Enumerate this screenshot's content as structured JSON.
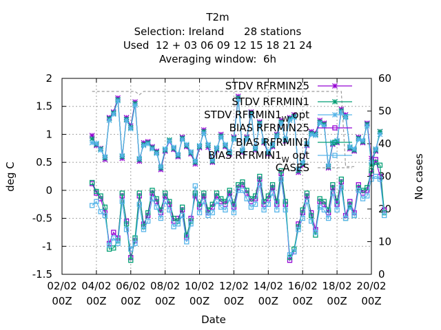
{
  "header": {
    "line1": "T2m",
    "line2": "Selection: Ireland      28 stations",
    "line3": "Used  12 + 03 06 09 12 15 18 21 24",
    "line4": "Averaging window:  6h"
  },
  "chart_data": {
    "type": "line",
    "xlabel": "Date",
    "ylabel": "deg C",
    "y2label": "No cases",
    "x_ticks": [
      {
        "date": "2023-02-02T00:00",
        "line1": "02/02",
        "line2": "00Z"
      },
      {
        "date": "2023-02-04T00:00",
        "line1": "04/02",
        "line2": "00Z"
      },
      {
        "date": "2023-02-06T00:00",
        "line1": "06/02",
        "line2": "00Z"
      },
      {
        "date": "2023-02-08T00:00",
        "line1": "08/02",
        "line2": "00Z"
      },
      {
        "date": "2023-02-10T00:00",
        "line1": "10/02",
        "line2": "00Z"
      },
      {
        "date": "2023-02-12T00:00",
        "line1": "12/02",
        "line2": "00Z"
      },
      {
        "date": "2023-02-14T00:00",
        "line1": "14/02",
        "line2": "00Z"
      },
      {
        "date": "2023-02-16T00:00",
        "line1": "16/02",
        "line2": "00Z"
      },
      {
        "date": "2023-02-18T00:00",
        "line1": "18/02",
        "line2": "00Z"
      },
      {
        "date": "2023-02-20T00:00",
        "line1": "20/02",
        "line2": "00Z"
      }
    ],
    "xlim": [
      "2023-02-02T00:00",
      "2023-02-20T00:00"
    ],
    "ylim": [
      -1.5,
      2.0
    ],
    "y_ticks": [
      -1.5,
      -1,
      -0.5,
      0,
      0.5,
      1,
      1.5,
      2
    ],
    "y_tick_labels": [
      "-1.5",
      "-1",
      "-0.5",
      "0",
      "0.5",
      "1",
      "1.5",
      "2"
    ],
    "y2lim": [
      0,
      60
    ],
    "y2_ticks": [
      0,
      10,
      20,
      30,
      40,
      50,
      60
    ],
    "y2_tick_labels": [
      "0",
      "10",
      "20",
      "30",
      "40",
      "50",
      "60"
    ],
    "grid": true,
    "legend_position": "top-right",
    "start": "2023-02-03T18:00",
    "step_hours": 6,
    "series": [
      {
        "name": "STDV RFRMIN25",
        "name_suffix": "",
        "kind": "stdv",
        "color": "#9400d3",
        "marker": "star",
        "axis": "y1",
        "values": [
          0.98,
          0.8,
          0.75,
          0.55,
          1.3,
          1.4,
          1.65,
          0.57,
          1.3,
          1.15,
          1.58,
          0.52,
          0.85,
          0.87,
          0.78,
          0.7,
          0.37,
          0.7,
          0.88,
          0.73,
          0.6,
          0.95,
          0.78,
          0.65,
          0.47,
          0.76,
          1.08,
          0.77,
          0.5,
          0.72,
          1.0,
          0.78,
          0.65,
          0.95,
          1.68,
          0.68,
          0.95,
          1.4,
          0.72,
          1.22,
          0.85,
          0.65,
          0.78,
          1.0,
          1.25,
          0.88,
          1.3,
          1.35,
          0.32,
          0.45,
          0.8,
          1.05,
          1.02,
          1.25,
          1.2,
          0.4,
          0.82,
          0.85,
          1.45,
          1.35,
          0.74,
          0.7,
          0.95,
          0.85,
          1.2,
          0.57,
          0.7,
          1.05
        ]
      },
      {
        "name": "STDV RFRMIN1",
        "name_suffix": "",
        "kind": "stdv",
        "color": "#009e73",
        "marker": "star",
        "axis": "y1",
        "values": [
          0.92,
          0.82,
          0.74,
          0.58,
          1.28,
          1.38,
          1.62,
          0.6,
          1.27,
          1.12,
          1.55,
          0.55,
          0.82,
          0.85,
          0.76,
          0.68,
          0.4,
          0.72,
          0.9,
          0.75,
          0.62,
          0.93,
          0.8,
          0.67,
          0.5,
          0.78,
          1.05,
          0.8,
          0.52,
          0.74,
          0.97,
          0.8,
          0.67,
          0.93,
          1.65,
          0.7,
          0.93,
          1.38,
          0.74,
          1.2,
          0.87,
          0.67,
          0.8,
          0.98,
          1.22,
          0.9,
          1.28,
          1.32,
          0.35,
          0.48,
          0.82,
          1.02,
          1.0,
          1.22,
          1.18,
          0.42,
          0.84,
          0.87,
          1.42,
          1.32,
          0.76,
          0.72,
          0.93,
          0.87,
          1.18,
          0.45,
          0.72,
          1.05
        ]
      },
      {
        "name": "STDV RFRMIN1",
        "name_suffix": "W",
        "name_tail": " opt",
        "kind": "stdv",
        "color": "#56b4e9",
        "marker": "star",
        "axis": "y1",
        "values": [
          0.85,
          0.84,
          0.72,
          0.6,
          1.25,
          1.36,
          1.6,
          0.62,
          1.25,
          1.1,
          1.52,
          0.57,
          0.8,
          0.83,
          0.74,
          0.66,
          0.42,
          0.74,
          0.88,
          0.77,
          0.64,
          0.91,
          0.82,
          0.69,
          0.52,
          0.8,
          1.02,
          0.82,
          0.54,
          0.76,
          0.95,
          0.82,
          0.69,
          0.91,
          1.62,
          0.72,
          0.91,
          1.35,
          0.76,
          1.18,
          0.89,
          0.69,
          0.82,
          0.96,
          1.2,
          0.92,
          1.25,
          1.3,
          0.38,
          0.5,
          0.84,
          1.0,
          0.98,
          1.2,
          1.15,
          0.44,
          0.86,
          0.89,
          1.4,
          1.3,
          0.78,
          0.74,
          0.91,
          0.89,
          1.15,
          0.5,
          0.74,
          1.0
        ]
      },
      {
        "name": "BIAS RFRMIN25",
        "name_suffix": "",
        "kind": "bias",
        "color": "#9400d3",
        "marker": "square",
        "axis": "y1",
        "values": [
          0.12,
          -0.05,
          -0.15,
          -0.4,
          -0.95,
          -0.75,
          -0.85,
          -0.1,
          -0.55,
          -1.2,
          -0.9,
          -0.1,
          -0.6,
          -0.45,
          -0.05,
          -0.2,
          -0.4,
          -0.1,
          -0.25,
          -0.55,
          -0.5,
          -0.35,
          -0.85,
          -0.5,
          -0.1,
          -0.3,
          -0.1,
          -0.4,
          -0.3,
          -0.1,
          -0.2,
          -0.25,
          -0.05,
          -0.3,
          0.05,
          0.1,
          -0.05,
          -0.2,
          -0.15,
          0.2,
          -0.25,
          -0.15,
          0.05,
          -0.25,
          0.3,
          -0.25,
          -1.25,
          -1.1,
          -0.6,
          -0.4,
          -0.1,
          -0.4,
          -0.7,
          -0.2,
          -0.25,
          -0.4,
          0.05,
          -0.25,
          0.15,
          -0.45,
          -0.2,
          -0.4,
          0.1,
          -0.05,
          0.0,
          0.3,
          0.55,
          0.25,
          -0.35
        ]
      },
      {
        "name": "BIAS RFRMIN1",
        "name_suffix": "",
        "kind": "bias",
        "color": "#009e73",
        "marker": "square",
        "axis": "y1",
        "values": [
          0.14,
          -0.02,
          -0.1,
          -0.3,
          -1.05,
          -1.03,
          -0.9,
          -0.05,
          -0.6,
          -1.25,
          -0.85,
          -0.05,
          -0.65,
          -0.4,
          0.0,
          -0.15,
          -0.35,
          -0.05,
          -0.2,
          -0.5,
          -0.55,
          -0.3,
          -0.8,
          -0.55,
          -0.05,
          -0.25,
          -0.05,
          -0.35,
          -0.25,
          -0.05,
          -0.15,
          -0.2,
          0.0,
          -0.25,
          0.1,
          0.15,
          0.0,
          -0.15,
          -0.1,
          0.25,
          -0.2,
          -0.1,
          0.1,
          -0.2,
          0.35,
          -0.2,
          -1.2,
          -1.05,
          -0.65,
          -0.35,
          -0.05,
          -0.45,
          -0.8,
          -0.15,
          -0.2,
          -0.35,
          0.1,
          -0.2,
          0.2,
          -0.5,
          -0.25,
          -0.45,
          0.05,
          0.0,
          0.05,
          0.35,
          0.5,
          0.45,
          -0.4
        ]
      },
      {
        "name": "BIAS RFRMIN1",
        "name_suffix": "W",
        "name_tail": " opt",
        "kind": "bias",
        "color": "#56b4e9",
        "marker": "square",
        "axis": "y1",
        "values": [
          -0.27,
          -0.2,
          -0.38,
          -0.45,
          -0.98,
          -0.85,
          -0.95,
          -0.2,
          -0.7,
          -1.05,
          -0.95,
          -0.25,
          -0.7,
          -0.55,
          -0.15,
          -0.3,
          -0.5,
          -0.2,
          -0.35,
          -0.65,
          -0.6,
          -0.45,
          -0.92,
          -0.6,
          0.08,
          -0.4,
          -0.2,
          -0.45,
          -0.4,
          -0.2,
          -0.3,
          -0.35,
          -0.15,
          -0.4,
          0.0,
          0.0,
          -0.15,
          -0.3,
          -0.25,
          0.1,
          -0.35,
          -0.25,
          -0.05,
          -0.35,
          0.2,
          -0.35,
          -1.15,
          -1.1,
          -0.7,
          -0.5,
          -0.2,
          -0.55,
          -0.75,
          -0.3,
          -0.35,
          -0.5,
          -0.05,
          -0.35,
          0.05,
          -0.5,
          -0.3,
          -0.45,
          0.0,
          -0.15,
          -0.1,
          0.2,
          0.25,
          0.2,
          -0.45
        ]
      },
      {
        "name": "CASES",
        "name_suffix": "",
        "kind": "cases",
        "color": "#9b9b9b",
        "marker": "none",
        "axis": "y2",
        "points": [
          [
            "2023-02-03T18:00",
            56
          ],
          [
            "2023-02-06T06:00",
            56
          ],
          [
            "2023-02-06T12:00",
            55
          ],
          [
            "2023-02-06T18:00",
            56
          ],
          [
            "2023-02-18T06:00",
            56
          ],
          [
            "2023-02-18T12:00",
            33
          ],
          [
            "2023-02-19T00:00",
            33
          ]
        ]
      }
    ]
  }
}
